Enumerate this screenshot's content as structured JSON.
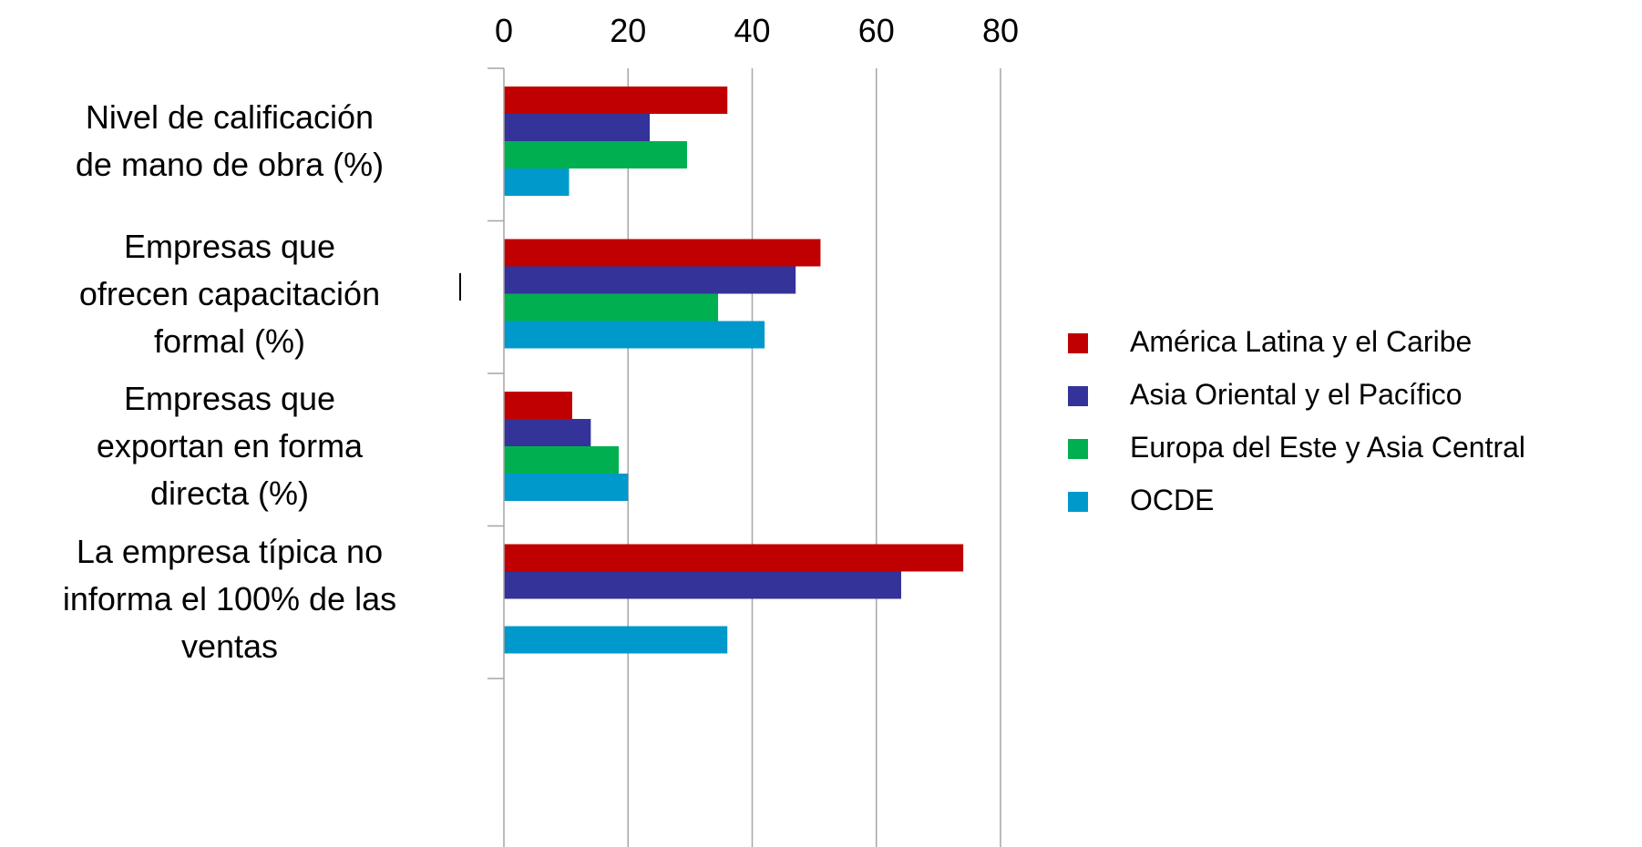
{
  "chart_data": {
    "type": "bar",
    "orientation": "horizontal",
    "title": "",
    "xlabel": "",
    "ylabel": "",
    "xlim": [
      0,
      80
    ],
    "x_ticks": [
      "0",
      "20",
      "40",
      "60",
      "80"
    ],
    "x_axis_position": "top",
    "grid": true,
    "legend_position": "right",
    "categories": [
      [
        "Nivel de calificación",
        "de mano de obra (%)"
      ],
      [
        "Empresas que",
        "ofrecen capacitación",
        "formal (%)"
      ],
      [
        "Empresas que",
        "exportan en forma",
        "directa (%)"
      ],
      [
        "La empresa típica no",
        "informa el 100% de las",
        "ventas"
      ]
    ],
    "series": [
      {
        "name": "América Latina y el Caribe",
        "color": "#C00000",
        "values": [
          36,
          51,
          11,
          74
        ]
      },
      {
        "name": "Asia Oriental y el Pacífico",
        "color": "#333399",
        "values": [
          23.5,
          47,
          14,
          64
        ]
      },
      {
        "name": "Europa del Este y Asia Central",
        "color": "#00B050",
        "values": [
          29.5,
          34.5,
          18.5,
          null
        ]
      },
      {
        "name": "OCDE",
        "color": "#0099CC",
        "values": [
          10.5,
          42,
          20,
          36
        ]
      }
    ]
  }
}
